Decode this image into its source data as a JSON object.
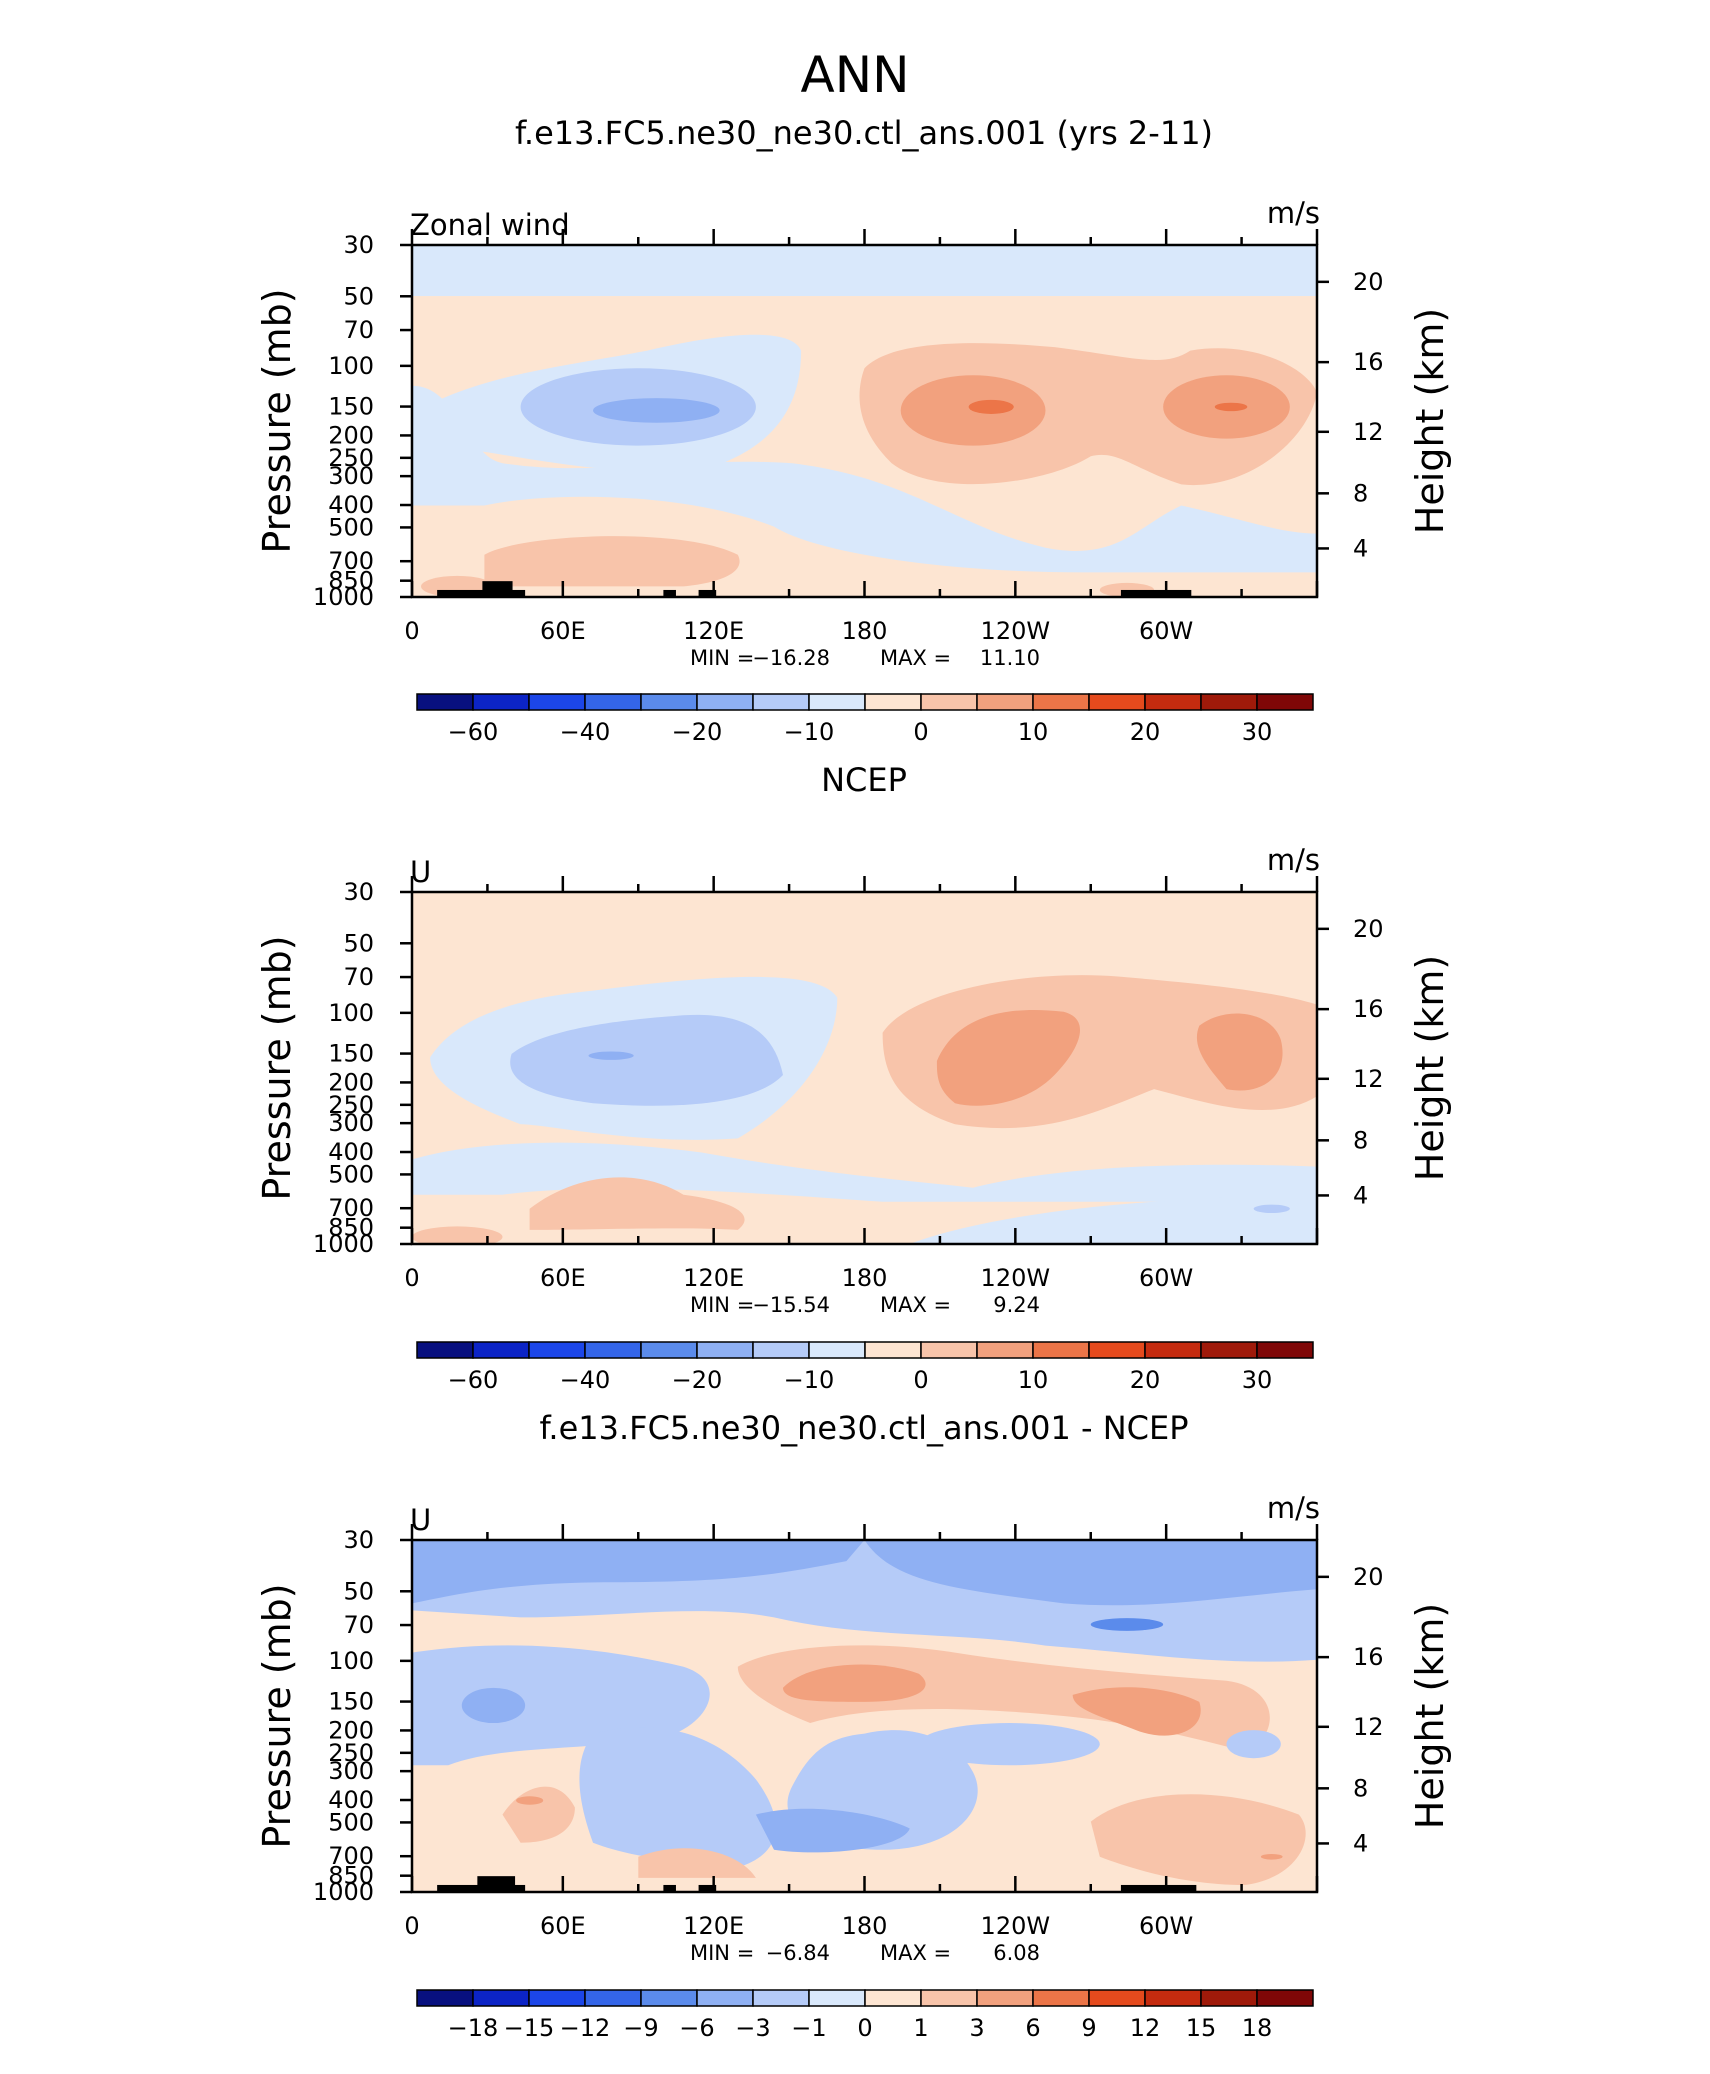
{
  "figure_title": "ANN",
  "chart_data": [
    {
      "type": "heatmap",
      "title": "f.e13.FC5.ne30_ne30.ctl_ans.001 (yrs 2-11)",
      "variable_label": "Zonal wind",
      "units": "m/s",
      "xlabel": "",
      "ylabel": "Pressure (mb)",
      "y2label": "Height (km)",
      "x_ticks": [
        "0",
        "60E",
        "120E",
        "180",
        "120W",
        "60W"
      ],
      "y_ticks": [
        "30",
        "50",
        "70",
        "100",
        "150",
        "200",
        "250",
        "300",
        "400",
        "500",
        "700",
        "850",
        "1000"
      ],
      "y2_ticks": [
        "20",
        "16",
        "12",
        "8",
        "4"
      ],
      "min_label": "MIN = ",
      "min": "−16.28",
      "max_label": "MAX = ",
      "max": "11.10",
      "colorbar_ticks": [
        "−60",
        "−40",
        "−20",
        "−10",
        "0",
        "10",
        "20",
        "30"
      ],
      "levels": [
        -70,
        -60,
        -50,
        -40,
        -30,
        -20,
        -15,
        -10,
        -5,
        0,
        5,
        10,
        15,
        20,
        25,
        30,
        40
      ],
      "features": [
        {
          "region": "30-50 mb band",
          "value": -2
        },
        {
          "region": "60E-120E, 100-300 mb",
          "value": -10
        },
        {
          "region": "150W, 150 mb core",
          "value": 11
        },
        {
          "region": "45W, 150 mb core",
          "value": 9
        },
        {
          "region": "surface 60E-120E",
          "value": 4
        }
      ]
    },
    {
      "type": "heatmap",
      "title": "NCEP",
      "variable_label": "U",
      "units": "m/s",
      "xlabel": "",
      "ylabel": "Pressure (mb)",
      "y2label": "Height (km)",
      "x_ticks": [
        "0",
        "60E",
        "120E",
        "180",
        "120W",
        "60W"
      ],
      "y_ticks": [
        "30",
        "50",
        "70",
        "100",
        "150",
        "200",
        "250",
        "300",
        "400",
        "500",
        "700",
        "850",
        "1000"
      ],
      "y2_ticks": [
        "20",
        "16",
        "12",
        "8",
        "4"
      ],
      "min_label": "MIN = ",
      "min": "−15.54",
      "max_label": "MAX = ",
      "max": "9.24",
      "colorbar_ticks": [
        "−60",
        "−40",
        "−20",
        "−10",
        "0",
        "10",
        "20",
        "30"
      ],
      "levels": [
        -70,
        -60,
        -50,
        -40,
        -30,
        -20,
        -15,
        -10,
        -5,
        0,
        5,
        10,
        15,
        20,
        25,
        30,
        40
      ],
      "features": [
        {
          "region": "60E-120E, 100-200 mb",
          "value": -10
        },
        {
          "region": "160W, 150 mb core",
          "value": 9
        },
        {
          "region": "40W, 150 mb core",
          "value": 8
        },
        {
          "region": "lower troposphere 180-60W",
          "value": -3
        }
      ]
    },
    {
      "type": "heatmap",
      "title": "f.e13.FC5.ne30_ne30.ctl_ans.001 - NCEP",
      "variable_label": "U",
      "units": "m/s",
      "xlabel": "",
      "ylabel": "Pressure (mb)",
      "y2label": "Height (km)",
      "x_ticks": [
        "0",
        "60E",
        "120E",
        "180",
        "120W",
        "60W"
      ],
      "y_ticks": [
        "30",
        "50",
        "70",
        "100",
        "150",
        "200",
        "250",
        "300",
        "400",
        "500",
        "700",
        "850",
        "1000"
      ],
      "y2_ticks": [
        "20",
        "16",
        "12",
        "8",
        "4"
      ],
      "min_label": "MIN = ",
      "min": "−6.84",
      "max_label": "MAX = ",
      "max": "6.08",
      "colorbar_ticks": [
        "−18",
        "−15",
        "−12",
        "−9",
        "−6",
        "−3",
        "−1",
        "0",
        "1",
        "3",
        "6",
        "9",
        "12",
        "15",
        "18"
      ],
      "levels": [
        -21,
        -18,
        -15,
        -12,
        -9,
        -6,
        -3,
        -1,
        0,
        1,
        3,
        6,
        9,
        12,
        15,
        18,
        21
      ],
      "features": [
        {
          "region": "30-70 mb band",
          "value": -4
        },
        {
          "region": "150E-120W, 100-200 mb",
          "value": 5
        },
        {
          "region": "150E-180, 500-700 mb",
          "value": -5
        },
        {
          "region": "0-30E, 150 mb",
          "value": -4
        }
      ]
    }
  ],
  "colors": {
    "palette": [
      "#08107f",
      "#0c24c6",
      "#1c46e8",
      "#3465e8",
      "#5b8beb",
      "#8fb0f3",
      "#b5cbf8",
      "#d9e8fb",
      "#fde5d2",
      "#f8c4aa",
      "#f2a17e",
      "#ec7548",
      "#e54a1d",
      "#c52b0f",
      "#9f1a0a",
      "#7f0707"
    ],
    "topography": "#000000"
  }
}
